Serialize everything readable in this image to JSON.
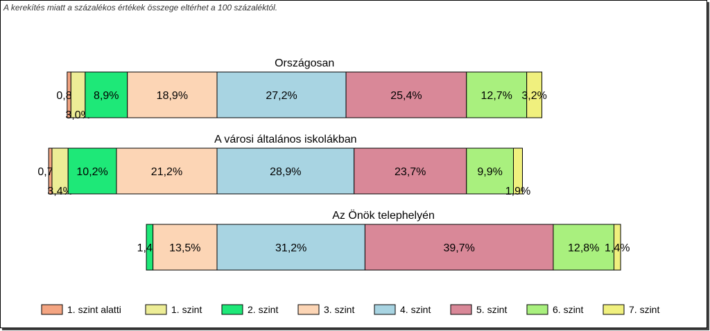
{
  "note": "A kerekítés miatt a  százalékos értékek összege eltérhet a 100 százaléktól.",
  "chart_data": {
    "type": "bar",
    "stacked": true,
    "orientation": "horizontal",
    "unit": "%",
    "legend_position": "bottom",
    "series": [
      {
        "name": "1. szint alatti",
        "color": "#f4a582"
      },
      {
        "name": "1. szint",
        "color": "#eded96"
      },
      {
        "name": "2. szint",
        "color": "#1ee878"
      },
      {
        "name": "3. szint",
        "color": "#fcd5b5"
      },
      {
        "name": "4. szint",
        "color": "#a8d4e2"
      },
      {
        "name": "5. szint",
        "color": "#d98898"
      },
      {
        "name": "6. szint",
        "color": "#a9f07e"
      },
      {
        "name": "7. szint",
        "color": "#f0f07e"
      }
    ],
    "bars": [
      {
        "title": "Országosan",
        "values": [
          0.8,
          3.0,
          8.9,
          18.9,
          27.2,
          25.4,
          12.7,
          3.2
        ],
        "labels": [
          "0,8%",
          "3,0%",
          "8,9%",
          "18,9%",
          "27,2%",
          "25,4%",
          "12,7%",
          "3,2%"
        ]
      },
      {
        "title": "A városi általános iskolákban",
        "values": [
          0.7,
          3.4,
          10.2,
          21.2,
          28.9,
          23.7,
          9.9,
          1.9
        ],
        "labels": [
          "0,7%",
          "3,4%",
          "10,2%",
          "21,2%",
          "28,9%",
          "23,7%",
          "9,9%",
          "1,9%"
        ]
      },
      {
        "title": "Az Önök telephelyén",
        "values": [
          0,
          0,
          1.4,
          13.5,
          31.2,
          39.7,
          12.8,
          1.4
        ],
        "labels": [
          "",
          "",
          "1,4%",
          "13,5%",
          "31,2%",
          "39,7%",
          "12,8%",
          "1,4%"
        ]
      }
    ]
  }
}
